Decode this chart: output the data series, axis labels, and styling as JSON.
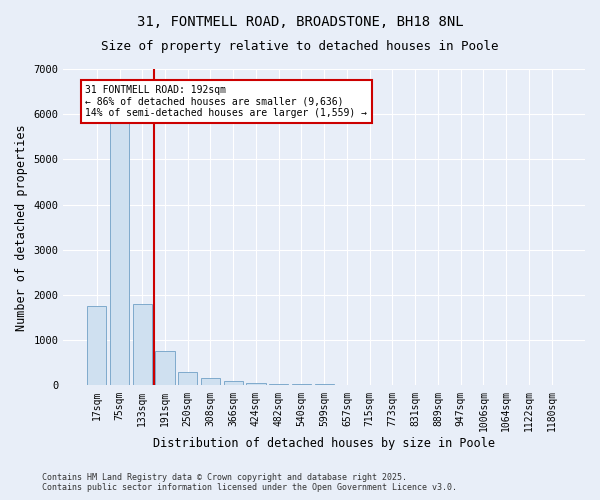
{
  "title": "31, FONTMELL ROAD, BROADSTONE, BH18 8NL",
  "subtitle": "Size of property relative to detached houses in Poole",
  "xlabel": "Distribution of detached houses by size in Poole",
  "ylabel": "Number of detached properties",
  "categories": [
    "17sqm",
    "75sqm",
    "133sqm",
    "191sqm",
    "250sqm",
    "308sqm",
    "366sqm",
    "424sqm",
    "482sqm",
    "540sqm",
    "599sqm",
    "657sqm",
    "715sqm",
    "773sqm",
    "831sqm",
    "889sqm",
    "947sqm",
    "1006sqm",
    "1064sqm",
    "1122sqm",
    "1180sqm"
  ],
  "values": [
    1750,
    5800,
    1800,
    760,
    290,
    170,
    90,
    60,
    40,
    25,
    30,
    20,
    15,
    4,
    2,
    1,
    1,
    0,
    0,
    0,
    0
  ],
  "bar_color": "#cfe0f0",
  "bar_edgecolor": "#7faacc",
  "vline_x": 2.5,
  "vline_color": "#cc0000",
  "ylim": [
    0,
    7000
  ],
  "yticks": [
    0,
    1000,
    2000,
    3000,
    4000,
    5000,
    6000,
    7000
  ],
  "annotation_text": "31 FONTMELL ROAD: 192sqm\n← 86% of detached houses are smaller (9,636)\n14% of semi-detached houses are larger (1,559) →",
  "annotation_box_edgecolor": "#cc0000",
  "annotation_box_facecolor": "#ffffff",
  "footer_line1": "Contains HM Land Registry data © Crown copyright and database right 2025.",
  "footer_line2": "Contains public sector information licensed under the Open Government Licence v3.0.",
  "background_color": "#e8eef8",
  "grid_color": "#ffffff",
  "title_fontsize": 10,
  "subtitle_fontsize": 9,
  "axis_label_fontsize": 8.5,
  "tick_fontsize": 7,
  "annotation_fontsize": 7,
  "footer_fontsize": 6
}
